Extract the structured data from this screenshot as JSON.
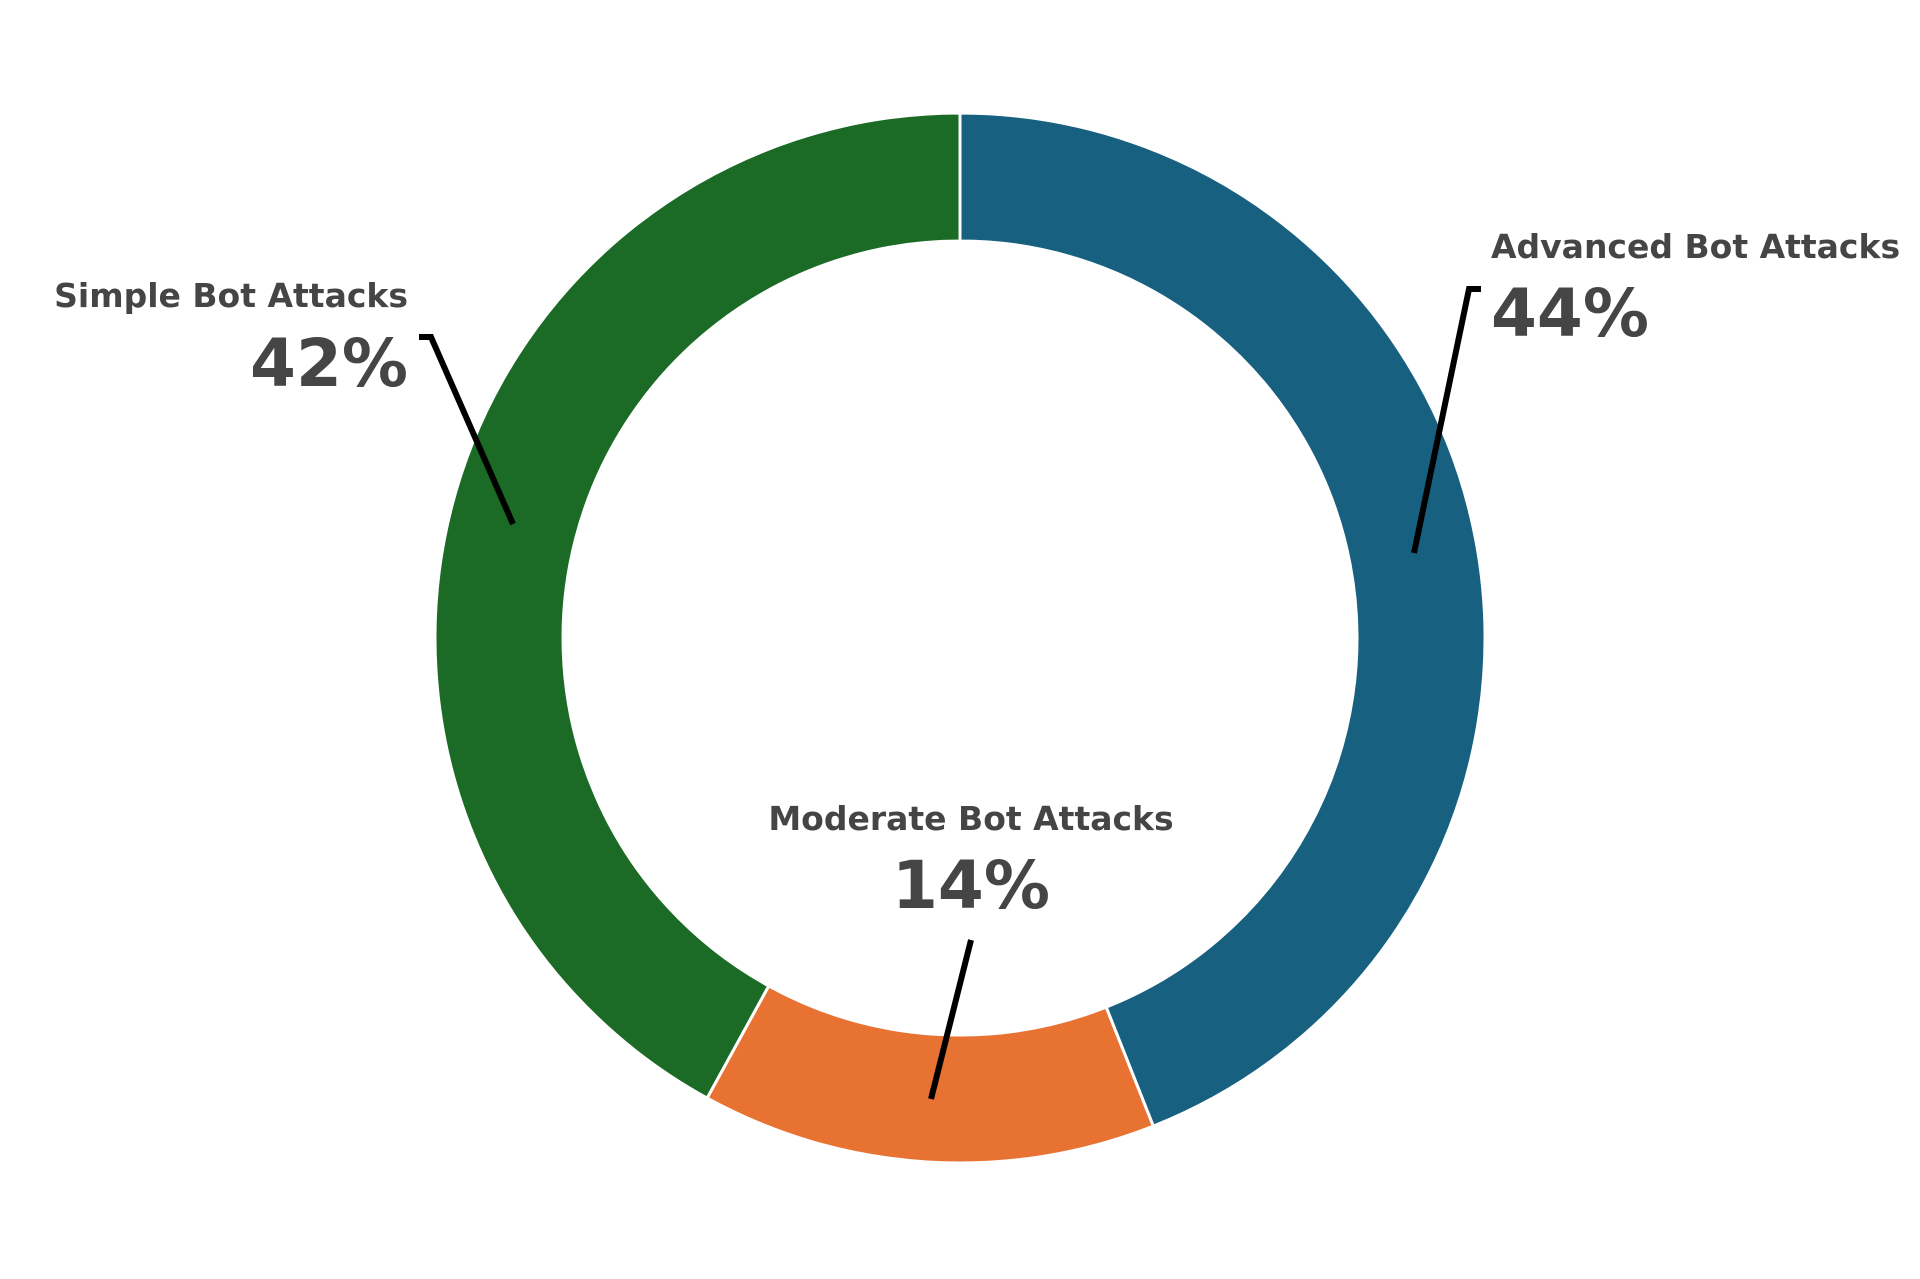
{
  "chart_data": {
    "type": "donut",
    "categories": [
      "Advanced Bot Attacks",
      "Moderate Bot Attacks",
      "Simple Bot Attacks"
    ],
    "values": [
      44,
      14,
      42
    ],
    "value_labels": [
      "44%",
      "14%",
      "42%"
    ],
    "colors": [
      "#17607f",
      "#e87231",
      "#1b6a25"
    ]
  }
}
